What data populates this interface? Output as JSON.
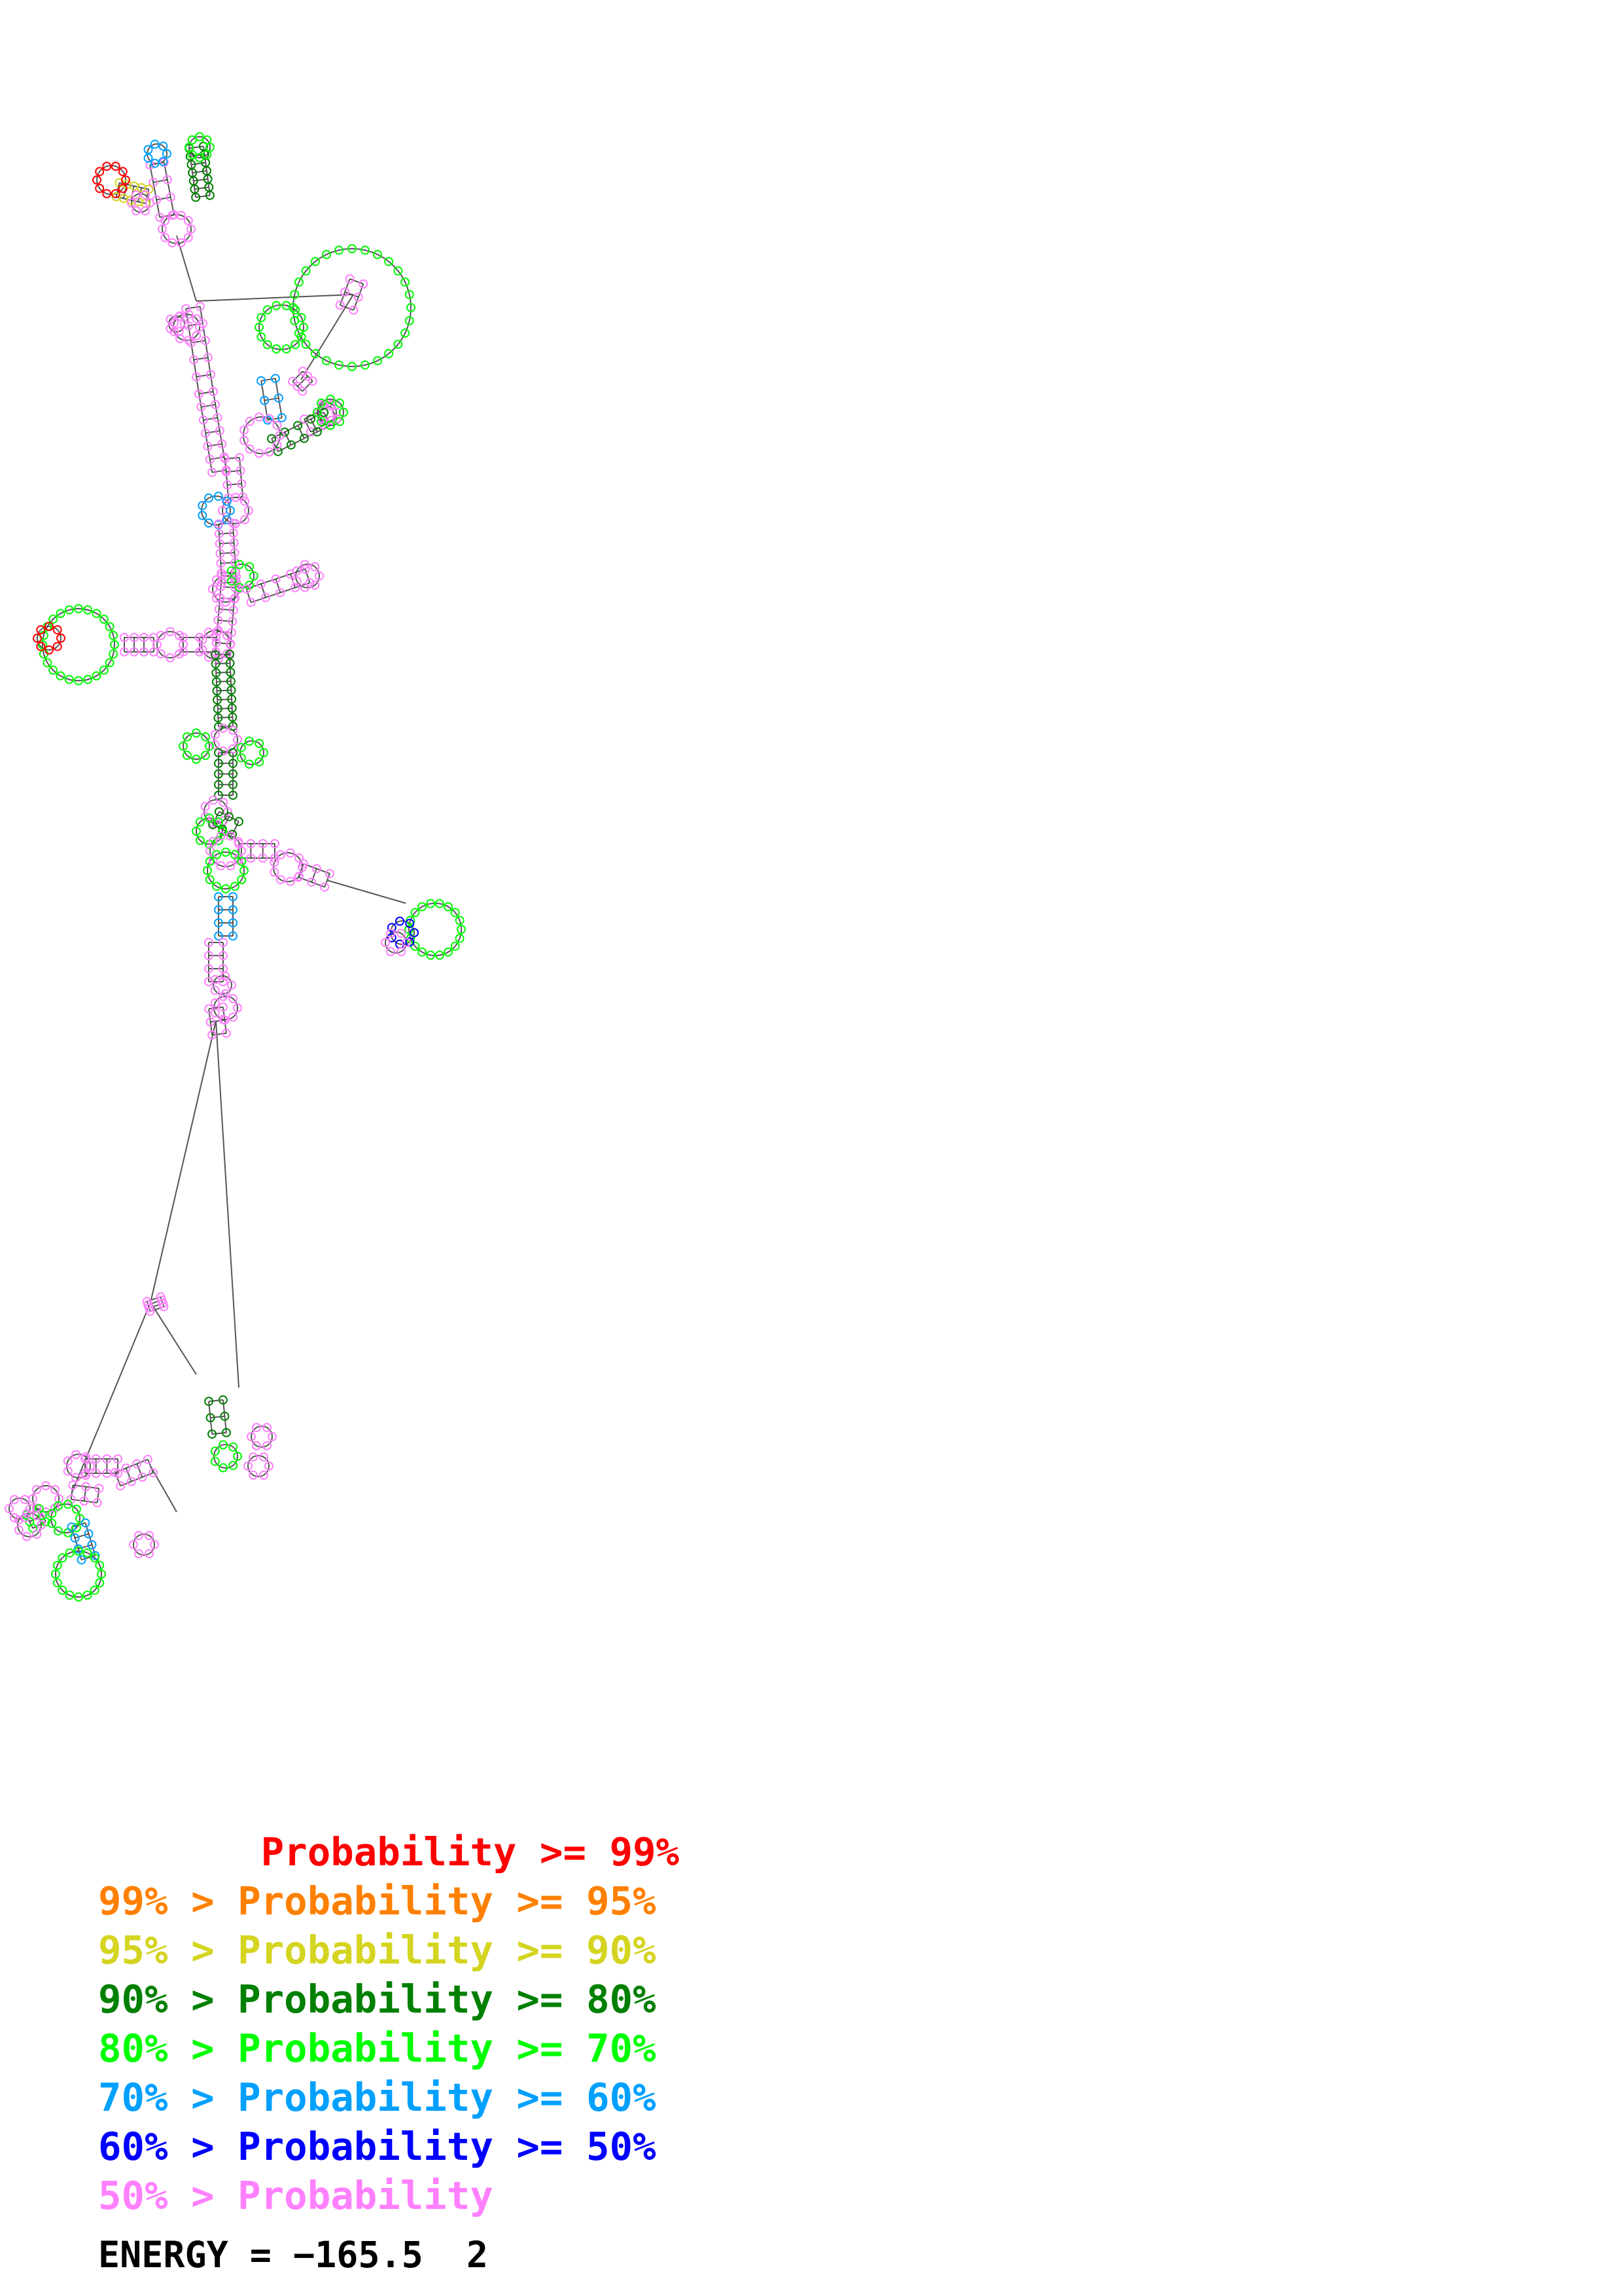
{
  "diagram": {
    "type": "rna-secondary-structure",
    "base_colors_by_probability": [
      "#ff0000",
      "#ff8000",
      "#d4d421",
      "#008000",
      "#00ff00",
      "#00a0ff",
      "#0000ff",
      "#ff80ff"
    ],
    "outline_color": "#555555"
  },
  "legend": [
    {
      "text": "       Probability >= 99%",
      "color": "#ff0000"
    },
    {
      "text": "99% > Probability >= 95%",
      "color": "#ff8000"
    },
    {
      "text": "95% > Probability >= 90%",
      "color": "#d4d421"
    },
    {
      "text": "90% > Probability >= 80%",
      "color": "#008000"
    },
    {
      "text": "80% > Probability >= 70%",
      "color": "#00ff00"
    },
    {
      "text": "70% > Probability >= 60%",
      "color": "#00a0ff"
    },
    {
      "text": "60% > Probability >= 50%",
      "color": "#0000ff"
    },
    {
      "text": "50% > Probability",
      "color": "#ff80ff"
    }
  ],
  "energy": {
    "text": "ENERGY = −165.5  2"
  }
}
